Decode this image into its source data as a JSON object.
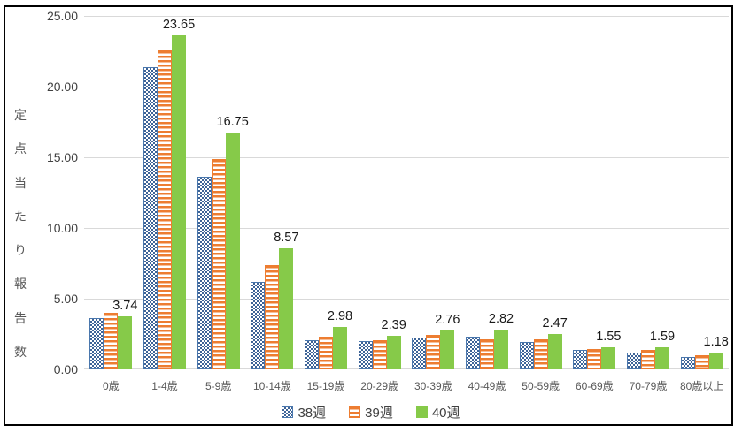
{
  "chart_data": {
    "type": "bar",
    "title": "",
    "ylabel": "定点当たり報告数",
    "xlabel": "",
    "ylim": [
      0,
      25
    ],
    "y_ticks": [
      "0.00",
      "5.00",
      "10.00",
      "15.00",
      "20.00",
      "25.00"
    ],
    "grid": true,
    "legend_position": "bottom",
    "categories": [
      "0歳",
      "1-4歳",
      "5-9歳",
      "10-14歳",
      "15-19歳",
      "20-29歳",
      "30-39歳",
      "40-49歳",
      "50-59歳",
      "60-69歳",
      "70-79歳",
      "80歳以上"
    ],
    "series": [
      {
        "name": "38週",
        "pattern": "checker",
        "color": "#3d6397",
        "border": "#4a77ad",
        "values": [
          3.6,
          21.35,
          13.6,
          6.2,
          2.05,
          2.0,
          2.25,
          2.3,
          1.95,
          1.38,
          1.2,
          0.9
        ]
      },
      {
        "name": "39週",
        "pattern": "hstripes",
        "color": "#ed7d31",
        "border": "#ed7d31",
        "values": [
          4.0,
          22.55,
          14.9,
          7.4,
          2.33,
          2.05,
          2.45,
          2.15,
          2.1,
          1.45,
          1.4,
          1.0
        ]
      },
      {
        "name": "40週",
        "pattern": "solid",
        "color": "#86ca49",
        "border": "#86ca49",
        "values": [
          3.74,
          23.65,
          16.75,
          8.57,
          2.98,
          2.39,
          2.76,
          2.82,
          2.47,
          1.55,
          1.59,
          1.18
        ],
        "data_labels": [
          "3.74",
          "23.65",
          "16.75",
          "8.57",
          "2.98",
          "2.39",
          "2.76",
          "2.82",
          "2.47",
          "1.55",
          "1.59",
          "1.18"
        ]
      }
    ],
    "colors": {
      "grid": "#d9d9d9",
      "axis_title_text": "#595959",
      "y_tick_text": "#404040",
      "x_tick_text": "#595959",
      "data_label_text": "#1a1a1a",
      "frame_border": "#000000",
      "background": "#ffffff"
    }
  }
}
